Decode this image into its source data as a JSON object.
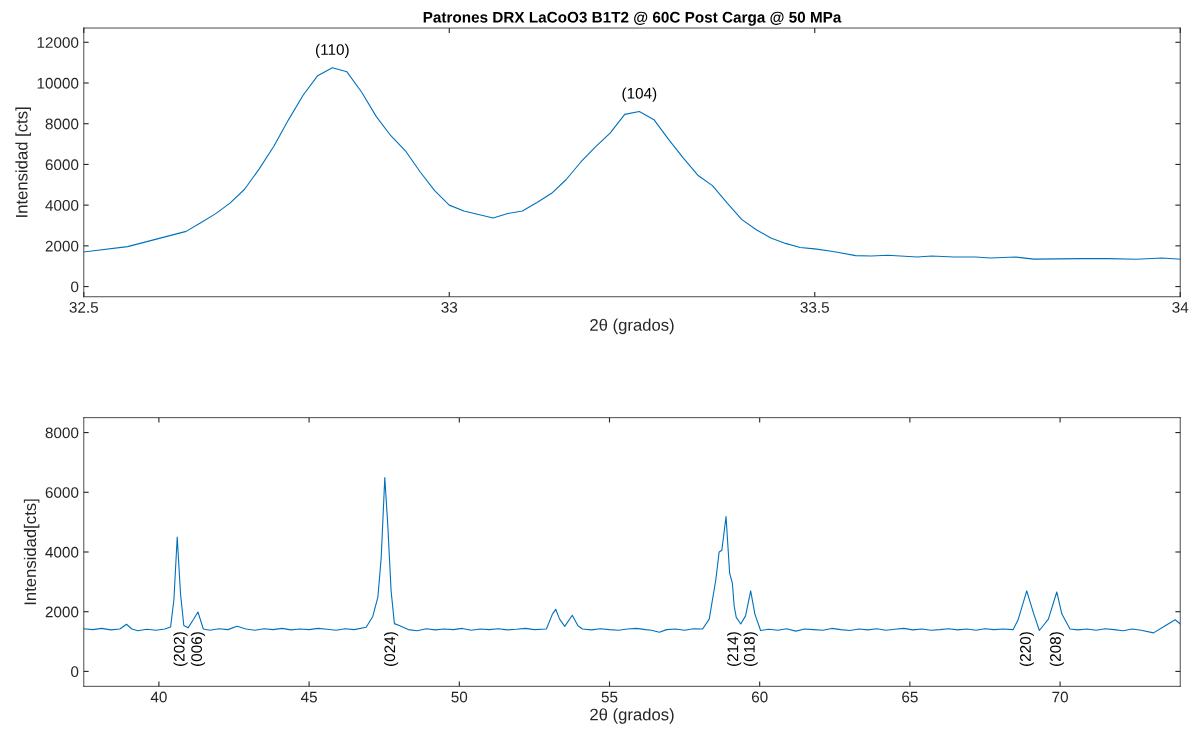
{
  "chart_data": [
    {
      "type": "line",
      "title": "Patrones DRX LaCoO3 B1T2 @ 60C Post Carga @ 50 MPa",
      "xlabel": "2θ (grados)",
      "ylabel": "Intensidad [cts]",
      "xlim": [
        32.5,
        34
      ],
      "xticks": [
        32.5,
        33,
        33.5,
        34
      ],
      "ylim": [
        -500,
        12700
      ],
      "yticks": [
        0,
        2000,
        4000,
        6000,
        8000,
        10000,
        12000
      ],
      "grid": false,
      "legend": false,
      "annotations": [
        {
          "text": "(110)",
          "x": 32.84,
          "y": 10750
        },
        {
          "text": "(104)",
          "x": 33.26,
          "y": 8600
        }
      ],
      "series": [
        {
          "color": "#0072bd",
          "x": [
            32.5,
            32.56,
            32.64,
            32.66,
            32.68,
            32.7,
            32.72,
            32.74,
            32.76,
            32.78,
            32.8,
            32.82,
            32.84,
            32.86,
            32.88,
            32.9,
            32.92,
            32.94,
            32.96,
            32.98,
            33.0,
            33.02,
            33.06,
            33.08,
            33.1,
            33.12,
            33.14,
            33.16,
            33.18,
            33.2,
            33.22,
            33.24,
            33.26,
            33.28,
            33.3,
            33.32,
            33.34,
            33.36,
            33.38,
            33.4,
            33.42,
            33.44,
            33.46,
            33.48,
            33.5,
            33.525,
            33.556,
            33.577,
            33.6,
            33.64,
            33.66,
            33.69,
            33.72,
            33.74,
            33.775,
            33.8,
            33.865,
            33.9,
            33.94,
            33.975,
            34.0
          ],
          "values": [
            1700,
            1960,
            2710,
            3130,
            3570,
            4100,
            4780,
            5780,
            6890,
            8190,
            9400,
            10360,
            10750,
            10550,
            9560,
            8360,
            7410,
            6670,
            5640,
            4710,
            4000,
            3710,
            3370,
            3590,
            3710,
            4130,
            4580,
            5260,
            6120,
            6860,
            7540,
            8460,
            8600,
            8200,
            7230,
            6320,
            5470,
            4960,
            4110,
            3300,
            2790,
            2390,
            2120,
            1920,
            1850,
            1720,
            1520,
            1500,
            1540,
            1450,
            1500,
            1450,
            1450,
            1400,
            1450,
            1350,
            1370,
            1370,
            1340,
            1400,
            1340
          ]
        }
      ]
    },
    {
      "type": "line",
      "xlabel": "2θ (grados)",
      "ylabel": "Intensidad[cts]",
      "xlim": [
        37.5,
        74
      ],
      "xticks": [
        40,
        45,
        50,
        55,
        60,
        65,
        70
      ],
      "ylim": [
        -500,
        8500
      ],
      "yticks": [
        0,
        2000,
        4000,
        6000,
        8000
      ],
      "grid": false,
      "legend": false,
      "annotations": [
        {
          "text": "(202)",
          "x": 40.72,
          "y": 2600
        },
        {
          "text": "(006)",
          "x": 41.3,
          "y": 1990
        },
        {
          "text": "(024)",
          "x": 47.73,
          "y": 2700
        },
        {
          "text": "(214)",
          "x": 59.15,
          "y": 2200
        },
        {
          "text": "(018)",
          "x": 59.7,
          "y": 2700
        },
        {
          "text": "(220)",
          "x": 68.89,
          "y": 2700
        },
        {
          "text": "(208)",
          "x": 69.89,
          "y": 2660
        }
      ],
      "series": [
        {
          "color": "#0072bd",
          "x": [
            37.5,
            37.8,
            38.1,
            38.4,
            38.7,
            38.92,
            39.1,
            39.3,
            39.6,
            39.9,
            40.2,
            40.39,
            40.5,
            40.61,
            40.72,
            40.83,
            40.97,
            41.15,
            41.3,
            41.48,
            41.7,
            42.0,
            42.3,
            42.6,
            42.9,
            43.2,
            43.5,
            43.8,
            44.1,
            44.4,
            44.7,
            45.0,
            45.3,
            45.6,
            45.9,
            46.2,
            46.5,
            46.9,
            47.12,
            47.29,
            47.4,
            47.52,
            47.62,
            47.73,
            47.84,
            48.0,
            48.3,
            48.6,
            48.9,
            49.2,
            49.5,
            49.8,
            50.1,
            50.4,
            50.7,
            51.0,
            51.3,
            51.6,
            51.9,
            52.2,
            52.5,
            52.9,
            53.1,
            53.21,
            53.34,
            53.51,
            53.76,
            53.95,
            54.1,
            54.4,
            54.7,
            55.0,
            55.3,
            55.6,
            55.9,
            56.2,
            56.4,
            56.66,
            56.9,
            57.2,
            57.5,
            57.8,
            58.1,
            58.32,
            58.54,
            58.65,
            58.74,
            58.88,
            59.0,
            59.09,
            59.15,
            59.22,
            59.37,
            59.53,
            59.7,
            59.84,
            60.03,
            60.3,
            60.6,
            60.9,
            61.2,
            61.5,
            61.8,
            62.1,
            62.4,
            62.7,
            63.0,
            63.3,
            63.6,
            63.9,
            64.2,
            64.5,
            64.8,
            65.1,
            65.4,
            65.7,
            66.0,
            66.3,
            66.6,
            66.9,
            67.2,
            67.5,
            67.8,
            68.1,
            68.44,
            68.61,
            68.89,
            69.11,
            69.31,
            69.61,
            69.89,
            70.06,
            70.33,
            70.6,
            70.9,
            71.2,
            71.5,
            71.8,
            72.1,
            72.4,
            72.7,
            73.11,
            73.5,
            73.83,
            74.0
          ],
          "values": [
            1430,
            1400,
            1440,
            1390,
            1420,
            1580,
            1420,
            1360,
            1410,
            1380,
            1420,
            1490,
            2400,
            4500,
            2600,
            1540,
            1460,
            1740,
            1990,
            1420,
            1380,
            1430,
            1400,
            1510,
            1420,
            1380,
            1430,
            1400,
            1440,
            1390,
            1420,
            1400,
            1440,
            1410,
            1380,
            1430,
            1400,
            1480,
            1840,
            2490,
            3800,
            6490,
            4900,
            2700,
            1600,
            1540,
            1400,
            1360,
            1430,
            1390,
            1420,
            1400,
            1440,
            1380,
            1420,
            1400,
            1430,
            1390,
            1410,
            1440,
            1400,
            1420,
            1920,
            2080,
            1750,
            1510,
            1880,
            1530,
            1420,
            1390,
            1430,
            1400,
            1380,
            1420,
            1440,
            1400,
            1380,
            1310,
            1400,
            1420,
            1380,
            1430,
            1420,
            1750,
            3070,
            4000,
            4060,
            5190,
            3290,
            2960,
            2200,
            1810,
            1590,
            1860,
            2700,
            1920,
            1370,
            1410,
            1380,
            1430,
            1350,
            1420,
            1400,
            1380,
            1440,
            1400,
            1370,
            1420,
            1390,
            1430,
            1380,
            1410,
            1440,
            1390,
            1420,
            1380,
            1400,
            1430,
            1390,
            1420,
            1380,
            1430,
            1400,
            1420,
            1400,
            1750,
            2700,
            1970,
            1370,
            1750,
            2660,
            1920,
            1420,
            1390,
            1420,
            1380,
            1430,
            1400,
            1360,
            1420,
            1380,
            1290,
            1530,
            1730,
            1590
          ]
        }
      ]
    }
  ]
}
